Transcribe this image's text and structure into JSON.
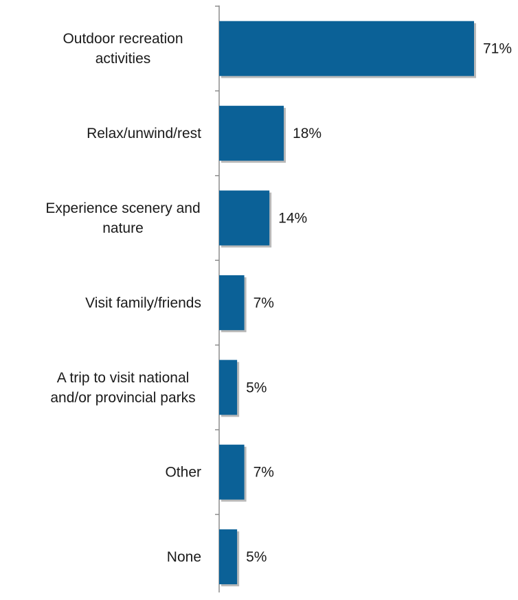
{
  "chart_data": {
    "type": "bar",
    "orientation": "horizontal",
    "categories": [
      "Outdoor recreation activities",
      "Relax/unwind/rest",
      "Experience scenery and nature",
      "Visit family/friends",
      "A trip to visit national and/or provincial parks",
      "Other",
      "None"
    ],
    "category_lines": [
      [
        "Outdoor recreation",
        "activities"
      ],
      [
        "Relax/unwind/rest"
      ],
      [
        "Experience scenery and",
        "nature"
      ],
      [
        "Visit family/friends"
      ],
      [
        "A trip to visit national",
        "and/or provincial parks"
      ],
      [
        "Other"
      ],
      [
        "None"
      ]
    ],
    "values": [
      71,
      18,
      14,
      7,
      5,
      7,
      5
    ],
    "value_labels": [
      "71%",
      "18%",
      "14%",
      "7%",
      "5%",
      "7%",
      "5%"
    ],
    "unit": "%",
    "xlim": [
      0,
      71
    ],
    "grid": false,
    "legend": "none",
    "title": "",
    "xlabel": "",
    "ylabel": "",
    "colors": {
      "bar": "#0b6197",
      "bar_shadow": "#b9b9b9",
      "axis": "#8c8c8c"
    }
  }
}
